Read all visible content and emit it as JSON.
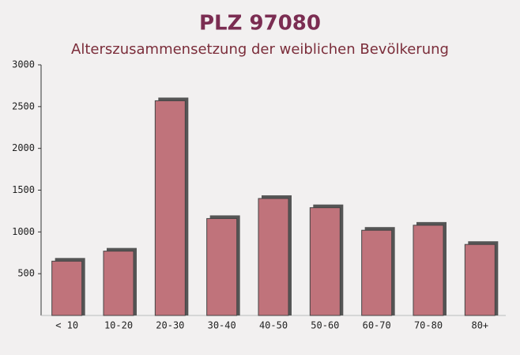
{
  "chart_data": {
    "type": "bar",
    "title": "PLZ 97080",
    "subtitle": "Alterszusammensetzung der weiblichen Bevölkerung",
    "categories": [
      "< 10",
      "10-20",
      "20-30",
      "30-40",
      "40-50",
      "50-60",
      "60-70",
      "70-80",
      "80+"
    ],
    "values": [
      650,
      770,
      2570,
      1160,
      1400,
      1290,
      1020,
      1080,
      850
    ],
    "color": "#c0737b",
    "ylim": [
      0,
      3000
    ],
    "yticks": [
      500,
      1000,
      1500,
      2000,
      2500,
      3000
    ]
  }
}
